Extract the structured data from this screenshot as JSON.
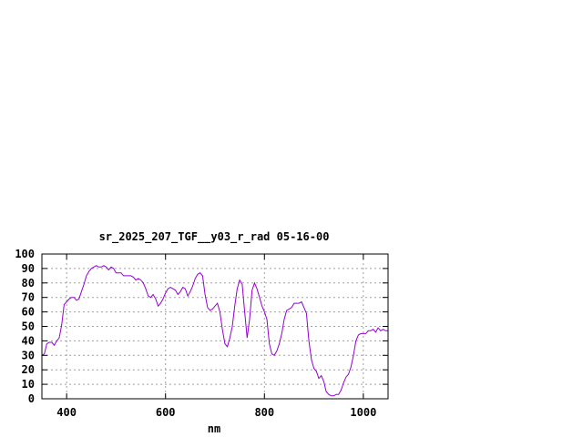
{
  "chart_data": {
    "type": "line",
    "title": "sr_2025_207_TGF__y03_r_rad 05-16-00",
    "xlabel": "nm",
    "ylabel": "",
    "xlim": [
      350,
      1050
    ],
    "ylim": [
      0,
      100
    ],
    "xticks": [
      400,
      600,
      800,
      1000
    ],
    "yticks": [
      0,
      10,
      20,
      30,
      40,
      50,
      60,
      70,
      80,
      90,
      100
    ],
    "grid": true,
    "legend": "none",
    "series": [
      {
        "color": "#9400d3",
        "points": [
          [
            350,
            30
          ],
          [
            355,
            31
          ],
          [
            360,
            38
          ],
          [
            365,
            39
          ],
          [
            370,
            39
          ],
          [
            375,
            37
          ],
          [
            380,
            40
          ],
          [
            385,
            42
          ],
          [
            390,
            51
          ],
          [
            395,
            65
          ],
          [
            400,
            67
          ],
          [
            405,
            69
          ],
          [
            410,
            70
          ],
          [
            415,
            70
          ],
          [
            420,
            68
          ],
          [
            425,
            69
          ],
          [
            430,
            74
          ],
          [
            435,
            79
          ],
          [
            440,
            85
          ],
          [
            445,
            88
          ],
          [
            450,
            90
          ],
          [
            455,
            91
          ],
          [
            460,
            92
          ],
          [
            465,
            91
          ],
          [
            470,
            91
          ],
          [
            475,
            92
          ],
          [
            480,
            91
          ],
          [
            485,
            89
          ],
          [
            490,
            91
          ],
          [
            495,
            90
          ],
          [
            500,
            87
          ],
          [
            505,
            87
          ],
          [
            510,
            87
          ],
          [
            515,
            85
          ],
          [
            520,
            85
          ],
          [
            525,
            85
          ],
          [
            530,
            85
          ],
          [
            535,
            84
          ],
          [
            540,
            82
          ],
          [
            545,
            83
          ],
          [
            550,
            82
          ],
          [
            555,
            80
          ],
          [
            560,
            76
          ],
          [
            565,
            71
          ],
          [
            570,
            70
          ],
          [
            575,
            72
          ],
          [
            580,
            69
          ],
          [
            585,
            64
          ],
          [
            590,
            66
          ],
          [
            595,
            69
          ],
          [
            600,
            73
          ],
          [
            605,
            76
          ],
          [
            610,
            77
          ],
          [
            615,
            76
          ],
          [
            620,
            75
          ],
          [
            625,
            72
          ],
          [
            630,
            74
          ],
          [
            635,
            77
          ],
          [
            640,
            76
          ],
          [
            645,
            71
          ],
          [
            650,
            74
          ],
          [
            655,
            78
          ],
          [
            660,
            83
          ],
          [
            665,
            86
          ],
          [
            670,
            87
          ],
          [
            675,
            85
          ],
          [
            680,
            72
          ],
          [
            685,
            63
          ],
          [
            690,
            61
          ],
          [
            695,
            62
          ],
          [
            700,
            64
          ],
          [
            705,
            66
          ],
          [
            710,
            60
          ],
          [
            715,
            48
          ],
          [
            720,
            38
          ],
          [
            725,
            36
          ],
          [
            730,
            42
          ],
          [
            735,
            50
          ],
          [
            740,
            64
          ],
          [
            745,
            76
          ],
          [
            750,
            82
          ],
          [
            755,
            79
          ],
          [
            760,
            60
          ],
          [
            765,
            42
          ],
          [
            770,
            55
          ],
          [
            775,
            75
          ],
          [
            780,
            80
          ],
          [
            785,
            76
          ],
          [
            790,
            70
          ],
          [
            795,
            64
          ],
          [
            800,
            60
          ],
          [
            805,
            55
          ],
          [
            810,
            38
          ],
          [
            815,
            31
          ],
          [
            820,
            30
          ],
          [
            825,
            33
          ],
          [
            830,
            38
          ],
          [
            835,
            45
          ],
          [
            840,
            55
          ],
          [
            845,
            61
          ],
          [
            850,
            62
          ],
          [
            855,
            63
          ],
          [
            860,
            66
          ],
          [
            865,
            66
          ],
          [
            870,
            66
          ],
          [
            875,
            67
          ],
          [
            880,
            63
          ],
          [
            885,
            59
          ],
          [
            890,
            40
          ],
          [
            895,
            27
          ],
          [
            900,
            21
          ],
          [
            905,
            19
          ],
          [
            910,
            14
          ],
          [
            915,
            16
          ],
          [
            920,
            12
          ],
          [
            925,
            5
          ],
          [
            930,
            3
          ],
          [
            935,
            2
          ],
          [
            940,
            2
          ],
          [
            945,
            3
          ],
          [
            950,
            3
          ],
          [
            955,
            6
          ],
          [
            960,
            11
          ],
          [
            965,
            15
          ],
          [
            970,
            17
          ],
          [
            975,
            22
          ],
          [
            980,
            30
          ],
          [
            985,
            40
          ],
          [
            990,
            44
          ],
          [
            995,
            45
          ],
          [
            1000,
            45
          ],
          [
            1005,
            45
          ],
          [
            1010,
            47
          ],
          [
            1015,
            47
          ],
          [
            1020,
            48
          ],
          [
            1025,
            46
          ],
          [
            1030,
            49
          ],
          [
            1035,
            47
          ],
          [
            1040,
            48
          ],
          [
            1045,
            47
          ],
          [
            1050,
            47
          ]
        ]
      }
    ]
  }
}
